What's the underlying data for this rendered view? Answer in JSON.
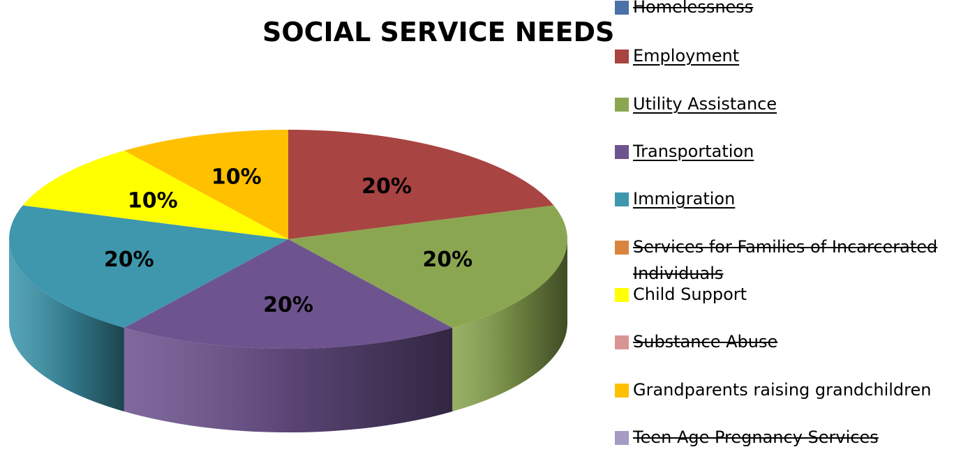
{
  "chart_data": {
    "type": "pie",
    "title": "SOCIAL SERVICE NEEDS",
    "style": "3d",
    "categories": [
      "Homelessness",
      "Employment",
      "Utility Assistance",
      "Transportation",
      "Immigration",
      "Services for Families of Incarcerated Individuals",
      "Child Support",
      "Substance Abuse",
      "Grandparents raising grandchildren",
      "Teen Age Pregnancy Services"
    ],
    "values": [
      0,
      20,
      20,
      20,
      20,
      0,
      10,
      0,
      10,
      0
    ],
    "data_labels": [
      "",
      "20%",
      "20%",
      "20%",
      "20%",
      "",
      "10%",
      "",
      "10%",
      ""
    ],
    "colors": [
      "#4a71a8",
      "#a84441",
      "#8ba651",
      "#6e548f",
      "#3f97ad",
      "#d9853e",
      "#ffff00",
      "#d99594",
      "#ffc000",
      "#a69bc4"
    ],
    "legend_position": "right",
    "legend_styles": [
      "strike",
      "underline",
      "underline",
      "underline",
      "underline",
      "strike",
      "plain",
      "strike",
      "plain",
      "strike"
    ]
  }
}
